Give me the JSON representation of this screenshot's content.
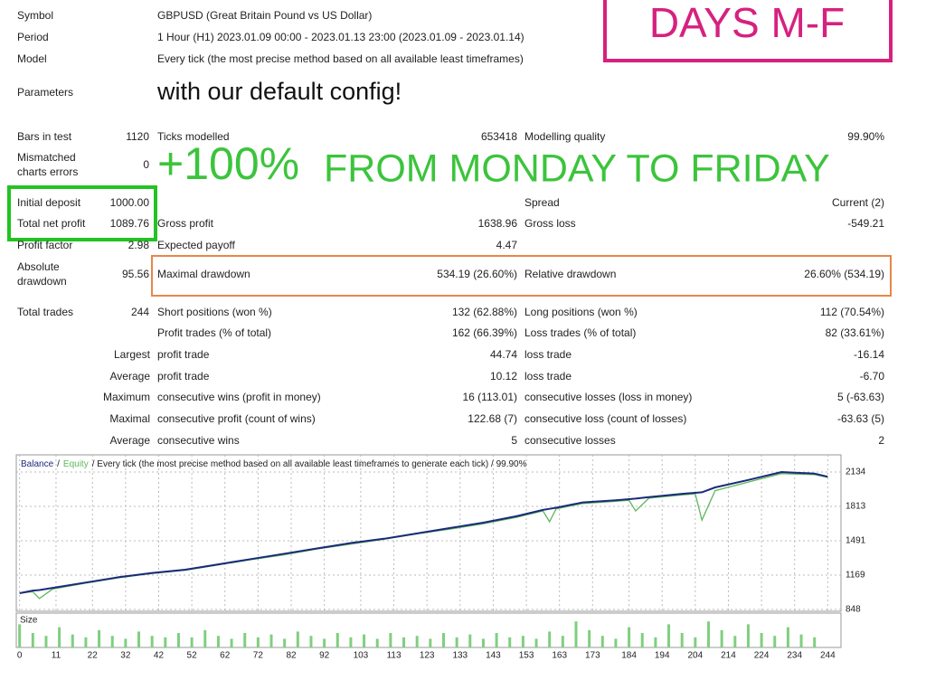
{
  "header": {
    "rows": [
      {
        "label": "Symbol",
        "value": "GBPUSD (Great Britain Pound vs US Dollar)"
      },
      {
        "label": "Period",
        "value": "1 Hour (H1) 2023.01.09 00:00 - 2023.01.13 23:00 (2023.01.09 - 2023.01.14)"
      },
      {
        "label": "Model",
        "value": "Every tick (the most precise method based on all available least timeframes)"
      },
      {
        "label": "Parameters",
        "value": "with our default config!"
      }
    ]
  },
  "overlays": {
    "badge": "DAYS M-F",
    "gain": "+100%",
    "headline": "FROM MONDAY TO FRIDAY"
  },
  "stats": {
    "rows": [
      [
        "Bars in test",
        "1120",
        "Ticks modelled",
        "653418",
        "Modelling quality",
        "99.90%"
      ],
      [
        [
          "Mismatched",
          "charts errors"
        ],
        "0",
        null,
        null,
        null,
        null
      ],
      [
        "Initial deposit",
        "1000.00",
        null,
        null,
        "Spread",
        "Current (2)"
      ],
      [
        "Total net profit",
        "1089.76",
        "Gross profit",
        "1638.96",
        "Gross loss",
        "-549.21"
      ],
      [
        "Profit factor",
        "2.98",
        "Expected payoff",
        "4.47",
        null,
        null
      ],
      [
        [
          "Absolute",
          "drawdown"
        ],
        "95.56",
        "Maximal drawdown",
        "534.19 (26.60%)",
        "Relative drawdown",
        "26.60% (534.19)"
      ],
      [
        "Total trades",
        "244",
        "Short positions (won %)",
        "132 (62.88%)",
        "Long positions (won %)",
        "112 (70.54%)"
      ],
      [
        null,
        null,
        "Profit trades (% of total)",
        "162 (66.39%)",
        "Loss trades (% of total)",
        "82 (33.61%)"
      ],
      [
        "Largest",
        null,
        "profit trade",
        "44.74",
        "loss trade",
        "-16.14"
      ],
      [
        "Average",
        null,
        "profit trade",
        "10.12",
        "loss trade",
        "-6.70"
      ],
      [
        "Maximum",
        null,
        "consecutive wins (profit in money)",
        "16 (113.01)",
        "consecutive losses (loss in money)",
        "5 (-63.63)"
      ],
      [
        "Maximal",
        null,
        "consecutive profit (count of wins)",
        "122.68 (7)",
        "consecutive loss (count of losses)",
        "-63.63 (5)"
      ],
      [
        "Average",
        null,
        "consecutive wins",
        "5",
        "consecutive losses",
        "2"
      ]
    ]
  },
  "chart_data": {
    "type": "line",
    "title": "/ Every tick (the most precise method based on all available least timeframes to generate each tick) / 99.90%",
    "legend_separator": "/",
    "x": [
      0,
      4,
      6,
      10,
      20,
      30,
      40,
      50,
      60,
      70,
      80,
      90,
      100,
      110,
      120,
      130,
      140,
      150,
      158,
      160,
      162,
      170,
      180,
      184,
      186,
      190,
      200,
      204,
      206,
      210,
      220,
      230,
      240,
      244
    ],
    "xlim": [
      -1,
      248
    ],
    "xticks": [
      0,
      11,
      22,
      32,
      42,
      52,
      62,
      72,
      82,
      92,
      103,
      113,
      123,
      133,
      143,
      153,
      163,
      173,
      184,
      194,
      204,
      214,
      224,
      234,
      244
    ],
    "ylim": [
      831,
      2295
    ],
    "yticks": [
      848,
      1169,
      1491,
      1813,
      2134
    ],
    "grid": true,
    "series": [
      {
        "name": "Balance",
        "color": "#1b2a7a",
        "values": [
          1000,
          1025,
          1030,
          1050,
          1100,
          1150,
          1190,
          1220,
          1270,
          1320,
          1370,
          1420,
          1470,
          1510,
          1560,
          1610,
          1660,
          1720,
          1780,
          1790,
          1800,
          1850,
          1870,
          1880,
          1885,
          1900,
          1930,
          1940,
          1945,
          1990,
          2060,
          2134,
          2120,
          2090
        ]
      },
      {
        "name": "Equity",
        "color": "#5cb85c",
        "values": [
          1000,
          1015,
          950,
          1040,
          1095,
          1145,
          1185,
          1215,
          1265,
          1315,
          1360,
          1415,
          1460,
          1505,
          1555,
          1600,
          1650,
          1710,
          1770,
          1670,
          1790,
          1840,
          1860,
          1870,
          1770,
          1890,
          1920,
          1930,
          1685,
          1960,
          2040,
          2120,
          2110,
          2085
        ]
      }
    ],
    "size": {
      "name": "Size",
      "color": "#7fcf7f",
      "ylim": [
        0,
        1
      ],
      "x": [
        0,
        4,
        8,
        12,
        16,
        20,
        24,
        28,
        32,
        36,
        40,
        44,
        48,
        52,
        56,
        60,
        64,
        68,
        72,
        76,
        80,
        84,
        88,
        92,
        96,
        100,
        104,
        108,
        112,
        116,
        120,
        124,
        128,
        132,
        136,
        140,
        144,
        148,
        152,
        156,
        160,
        164,
        168,
        172,
        176,
        180,
        184,
        188,
        192,
        196,
        200,
        204,
        208,
        212,
        216,
        220,
        224,
        228,
        232,
        236,
        240
      ],
      "values": [
        0.8,
        0.5,
        0.4,
        0.7,
        0.45,
        0.35,
        0.6,
        0.4,
        0.3,
        0.55,
        0.4,
        0.35,
        0.5,
        0.35,
        0.6,
        0.4,
        0.3,
        0.5,
        0.35,
        0.45,
        0.3,
        0.55,
        0.4,
        0.3,
        0.5,
        0.35,
        0.45,
        0.3,
        0.5,
        0.35,
        0.4,
        0.3,
        0.5,
        0.35,
        0.45,
        0.3,
        0.5,
        0.35,
        0.4,
        0.3,
        0.55,
        0.4,
        0.9,
        0.6,
        0.4,
        0.3,
        0.7,
        0.5,
        0.35,
        0.8,
        0.5,
        0.35,
        0.9,
        0.6,
        0.4,
        0.8,
        0.5,
        0.4,
        0.7,
        0.45,
        0.35
      ]
    }
  }
}
